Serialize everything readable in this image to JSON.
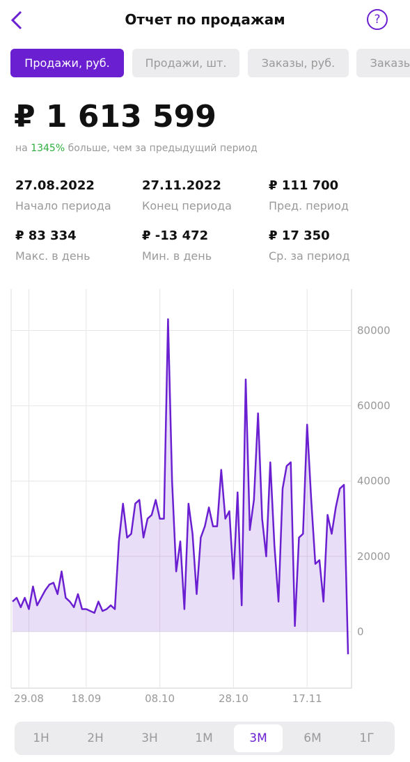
{
  "header": {
    "title": "Отчет по продажам",
    "help": "?"
  },
  "tabs": [
    "Продажи, руб.",
    "Продажи, шт.",
    "Заказы, руб.",
    "Заказы"
  ],
  "active_tab": 0,
  "summary": {
    "total": "₽ 1 613 599",
    "prefix": "на",
    "change": "1345%",
    "suffix": "больше, чем за предыдущий период"
  },
  "stats": [
    {
      "value": "27.08.2022",
      "label": "Начало периода"
    },
    {
      "value": "27.11.2022",
      "label": "Конец периода"
    },
    {
      "value": "₽  111 700",
      "label": "Пред. период"
    },
    {
      "value": "₽ 83 334",
      "label": "Макс. в день"
    },
    {
      "value": "₽ -13 472",
      "label": "Мин. в день"
    },
    {
      "value": "₽ 17 350",
      "label": "Ср. за период"
    }
  ],
  "chart_data": {
    "type": "line",
    "categories": [
      null,
      null,
      null,
      null,
      "29.08",
      null,
      null,
      null,
      null,
      null,
      null,
      null,
      null,
      null,
      null,
      null,
      null,
      null,
      "18.09",
      null,
      null,
      null,
      null,
      null,
      null,
      null,
      null,
      null,
      null,
      null,
      null,
      null,
      null,
      null,
      null,
      null,
      "08.10",
      null,
      null,
      null,
      null,
      null,
      null,
      null,
      null,
      null,
      null,
      null,
      null,
      null,
      null,
      null,
      null,
      null,
      "28.10",
      null,
      null,
      null,
      null,
      null,
      null,
      null,
      null,
      null,
      null,
      null,
      null,
      null,
      null,
      null,
      null,
      null,
      "17.11",
      null,
      null,
      null,
      null,
      null,
      null,
      null,
      null,
      null,
      null
    ],
    "series": [
      {
        "name": "Продажи, руб.",
        "color": "#6a1fd1",
        "values": [
          8000,
          9000,
          6500,
          9000,
          6000,
          12000,
          7000,
          9000,
          11000,
          12500,
          13000,
          10000,
          16000,
          9000,
          8000,
          6500,
          10000,
          6000,
          6000,
          5500,
          5000,
          8000,
          5500,
          6000,
          7000,
          6000,
          24000,
          34000,
          25000,
          26000,
          34000,
          35000,
          25000,
          30000,
          31000,
          35000,
          30000,
          30000,
          83000,
          40000,
          16000,
          24000,
          6000,
          34000,
          26000,
          10000,
          25000,
          28000,
          33000,
          28000,
          28000,
          43000,
          30000,
          32000,
          14000,
          37000,
          7000,
          67000,
          27000,
          35000,
          58000,
          30000,
          20000,
          45000,
          23000,
          8000,
          38000,
          44000,
          45000,
          1500,
          25000,
          26000,
          55000,
          35000,
          18000,
          19000,
          8000,
          31000,
          26000,
          33000,
          38000,
          39000,
          -6000
        ]
      }
    ],
    "ylim": [
      -15000,
      91000
    ],
    "yticks": [
      0,
      20000,
      40000,
      60000,
      80000
    ],
    "grid": true
  },
  "ranges": [
    "1Н",
    "2Н",
    "3Н",
    "1М",
    "3М",
    "6М",
    "1Г"
  ],
  "active_range": 4
}
